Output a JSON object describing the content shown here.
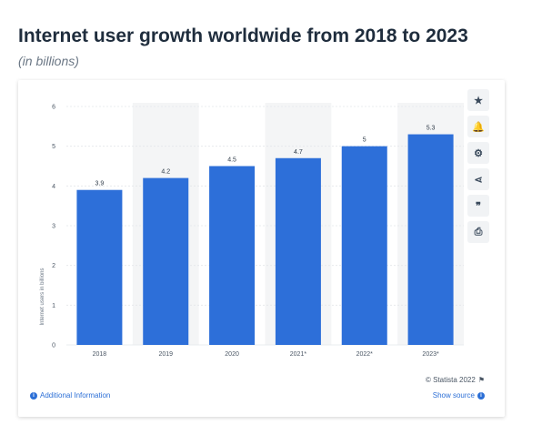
{
  "header": {
    "title": "Internet user growth worldwide from 2018 to 2023",
    "subtitle": "(in billions)"
  },
  "toolbar": {
    "icons": [
      "star-icon",
      "bell-icon",
      "gear-icon",
      "share-icon",
      "quote-icon",
      "print-icon"
    ],
    "glyphs": [
      "★",
      "🔔",
      "⚙",
      "⋖",
      "❞",
      "⎙"
    ]
  },
  "footer": {
    "additional_info": "Additional Information",
    "copyright": "© Statista 2022",
    "show_source": "Show source"
  },
  "colors": {
    "bar": "#2d6fd9",
    "stripe": "#f4f5f6",
    "grid": "#e3e6ea"
  },
  "chart_data": {
    "type": "bar",
    "categories": [
      "2018",
      "2019",
      "2020",
      "2021*",
      "2022*",
      "2023*"
    ],
    "values": [
      3.9,
      4.2,
      4.5,
      4.7,
      5,
      5.3
    ],
    "value_labels": [
      "3.9",
      "4.2",
      "4.5",
      "4.7",
      "5",
      "5.3"
    ],
    "ylabel": "Internet users in billions",
    "ylim": [
      0,
      6
    ],
    "yticks": [
      "0",
      "1",
      "2",
      "3",
      "4",
      "5",
      "6"
    ],
    "grid": true
  }
}
